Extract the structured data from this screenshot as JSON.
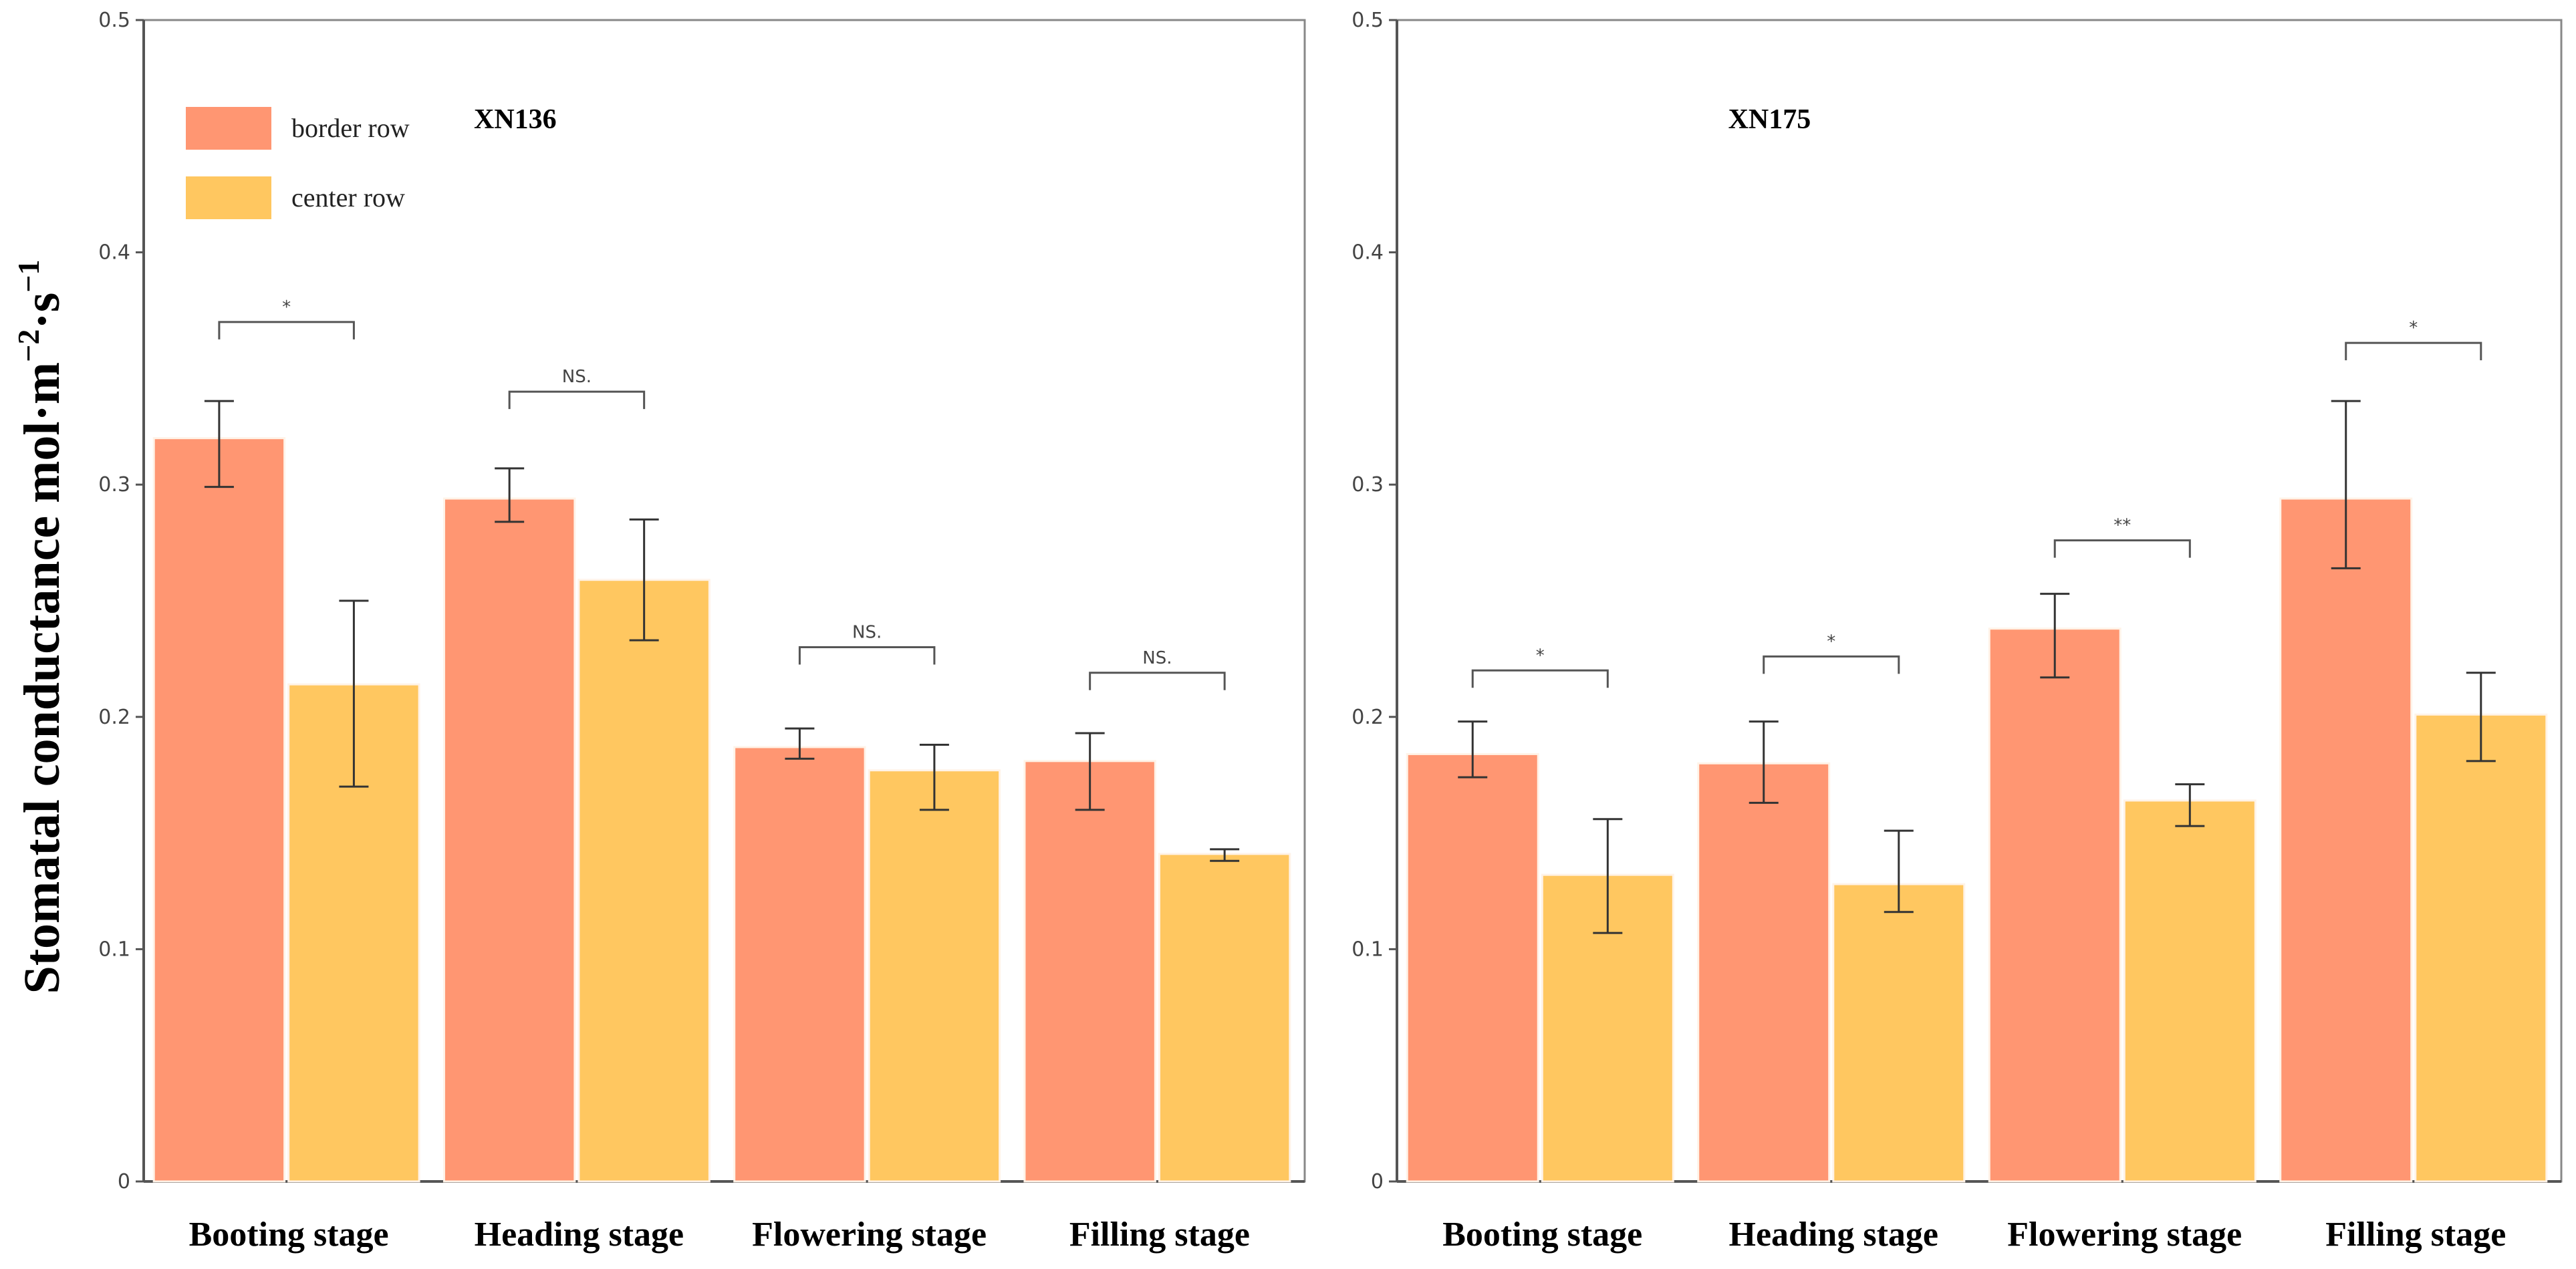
{
  "colors": {
    "border_row": "#ff9672",
    "center_row": "#ffc760",
    "axis": "#555555",
    "frame": "#888888",
    "error": "#333333",
    "bracket": "#555555"
  },
  "y_axis_label": "Stomatal conductance mol·m⁻²·s⁻¹",
  "y_axis_label_parts": {
    "base": "Stomatal conductance mol·m",
    "exp1": "−2",
    "mid": "·s",
    "exp2": "−1"
  },
  "chart_data": [
    {
      "type": "bar",
      "title": "XN136",
      "categories": [
        "Booting stage",
        "Heading stage",
        "Flowering stage",
        "Filling stage"
      ],
      "ylim": [
        0,
        0.5
      ],
      "yticks": [
        0,
        0.1,
        0.2,
        0.3,
        0.4,
        0.5
      ],
      "ytick_labels": [
        "0",
        "0.1",
        "0.2",
        "0.3",
        "0.4",
        "0.5"
      ],
      "legend": {
        "position": "top-left",
        "entries": [
          "border row",
          "center row"
        ]
      },
      "series": [
        {
          "name": "border row",
          "values": [
            0.32,
            0.294,
            0.187,
            0.181
          ],
          "err_low": [
            0.299,
            0.284,
            0.182,
            0.16
          ],
          "err_high": [
            0.336,
            0.307,
            0.195,
            0.193
          ]
        },
        {
          "name": "center row",
          "values": [
            0.214,
            0.259,
            0.177,
            0.141
          ],
          "err_low": [
            0.17,
            0.233,
            0.16,
            0.138
          ],
          "err_high": [
            0.25,
            0.285,
            0.188,
            0.143
          ]
        }
      ],
      "significance": [
        {
          "label": "*",
          "y": 0.37
        },
        {
          "label": "NS.",
          "y": 0.34
        },
        {
          "label": "NS.",
          "y": 0.23
        },
        {
          "label": "NS.",
          "y": 0.219
        }
      ]
    },
    {
      "type": "bar",
      "title": "XN175",
      "categories": [
        "Booting stage",
        "Heading stage",
        "Flowering stage",
        "Filling stage"
      ],
      "ylim": [
        0,
        0.5
      ],
      "yticks": [
        0,
        0.1,
        0.2,
        0.3,
        0.4,
        0.5
      ],
      "ytick_labels": [
        "0",
        "0.1",
        "0.2",
        "0.3",
        "0.4",
        "0.5"
      ],
      "series": [
        {
          "name": "border row",
          "values": [
            0.184,
            0.18,
            0.238,
            0.294
          ],
          "err_low": [
            0.174,
            0.163,
            0.217,
            0.264
          ],
          "err_high": [
            0.198,
            0.198,
            0.253,
            0.336
          ]
        },
        {
          "name": "center row",
          "values": [
            0.132,
            0.128,
            0.164,
            0.201
          ],
          "err_low": [
            0.107,
            0.116,
            0.153,
            0.181
          ],
          "err_high": [
            0.156,
            0.151,
            0.171,
            0.219
          ]
        }
      ],
      "significance": [
        {
          "label": "*",
          "y": 0.22
        },
        {
          "label": "*",
          "y": 0.226
        },
        {
          "label": "**",
          "y": 0.276
        },
        {
          "label": "*",
          "y": 0.361
        }
      ]
    }
  ]
}
